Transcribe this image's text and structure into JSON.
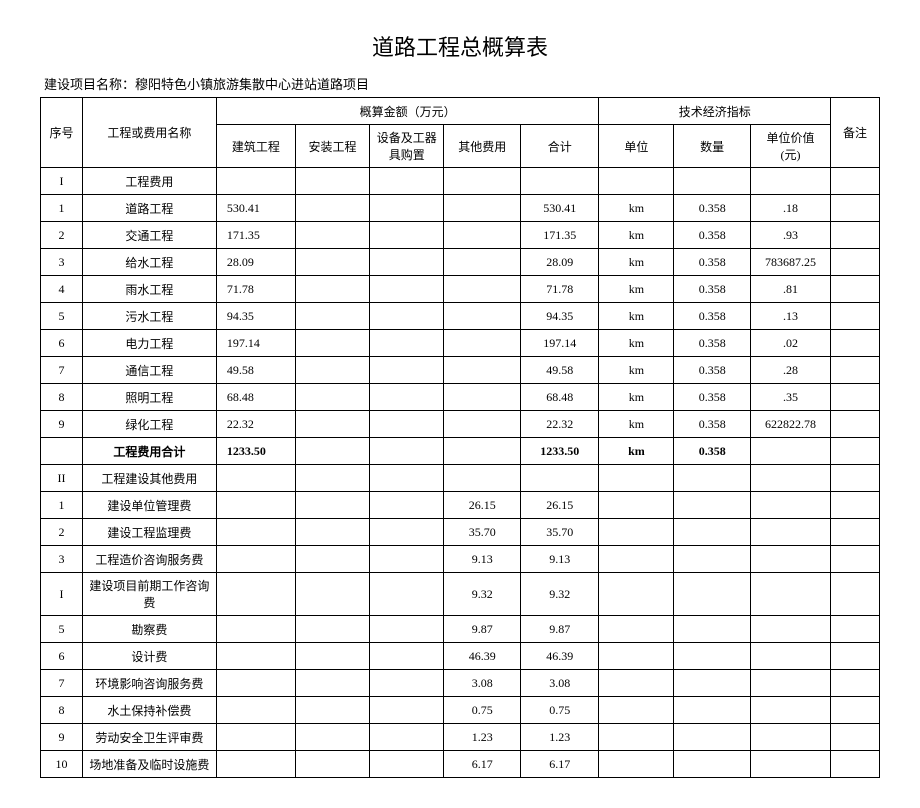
{
  "title": "道路工程总概算表",
  "subtitle": "建设项目名称：穆阳特色小镇旅游集散中心进站道路项目",
  "headers": {
    "seq": "序号",
    "name": "工程或费用名称",
    "budget_group": "概算金额（万元）",
    "tech_group": "技术经济指标",
    "remark": "备注",
    "construction": "建筑工程",
    "install": "安装工程",
    "equipment": "设备及工器具购置",
    "other": "其他费用",
    "total": "合计",
    "unit": "单位",
    "qty": "数量",
    "unit_price": "单位价值(元)"
  },
  "rows": [
    {
      "seq": "I",
      "name": "工程费用",
      "c1": "",
      "c2": "",
      "c3": "",
      "c4": "",
      "c5": "",
      "c6": "",
      "c7": "",
      "c8": "",
      "c9": "",
      "bold": false
    },
    {
      "seq": "1",
      "name": "道路工程",
      "c1": "530.41",
      "c2": "",
      "c3": "",
      "c4": "",
      "c5": "530.41",
      "c6": "km",
      "c7": "0.358",
      "c8": ".18",
      "c9": ""
    },
    {
      "seq": "2",
      "name": "交通工程",
      "c1": "171.35",
      "c2": "",
      "c3": "",
      "c4": "",
      "c5": "171.35",
      "c6": "km",
      "c7": "0.358",
      "c8": ".93",
      "c9": ""
    },
    {
      "seq": "3",
      "name": "给水工程",
      "c1": "28.09",
      "c2": "",
      "c3": "",
      "c4": "",
      "c5": "28.09",
      "c6": "km",
      "c7": "0.358",
      "c8": "783687.25",
      "c9": ""
    },
    {
      "seq": "4",
      "name": "雨水工程",
      "c1": "71.78",
      "c2": "",
      "c3": "",
      "c4": "",
      "c5": "71.78",
      "c6": "km",
      "c7": "0.358",
      "c8": ".81",
      "c9": ""
    },
    {
      "seq": "5",
      "name": "污水工程",
      "c1": "94.35",
      "c2": "",
      "c3": "",
      "c4": "",
      "c5": "94.35",
      "c6": "km",
      "c7": "0.358",
      "c8": ".13",
      "c9": ""
    },
    {
      "seq": "6",
      "name": "电力工程",
      "c1": "197.14",
      "c2": "",
      "c3": "",
      "c4": "",
      "c5": "197.14",
      "c6": "km",
      "c7": "0.358",
      "c8": ".02",
      "c9": ""
    },
    {
      "seq": "7",
      "name": "通信工程",
      "c1": "49.58",
      "c2": "",
      "c3": "",
      "c4": "",
      "c5": "49.58",
      "c6": "km",
      "c7": "0.358",
      "c8": ".28",
      "c9": ""
    },
    {
      "seq": "8",
      "name": "照明工程",
      "c1": "68.48",
      "c2": "",
      "c3": "",
      "c4": "",
      "c5": "68.48",
      "c6": "km",
      "c7": "0.358",
      "c8": ".35",
      "c9": ""
    },
    {
      "seq": "9",
      "name": "绿化工程",
      "c1": "22.32",
      "c2": "",
      "c3": "",
      "c4": "",
      "c5": "22.32",
      "c6": "km",
      "c7": "0.358",
      "c8": "622822.78",
      "c9": ""
    },
    {
      "seq": "",
      "name": "工程费用合计",
      "c1": "1233.50",
      "c2": "",
      "c3": "",
      "c4": "",
      "c5": "1233.50",
      "c6": "km",
      "c7": "0.358",
      "c8": "",
      "c9": "",
      "bold": true
    },
    {
      "seq": "II",
      "name": "工程建设其他费用",
      "c1": "",
      "c2": "",
      "c3": "",
      "c4": "",
      "c5": "",
      "c6": "",
      "c7": "",
      "c8": "",
      "c9": ""
    },
    {
      "seq": "1",
      "name": "建设单位管理费",
      "c1": "",
      "c2": "",
      "c3": "",
      "c4": "26.15",
      "c5": "26.15",
      "c6": "",
      "c7": "",
      "c8": "",
      "c9": ""
    },
    {
      "seq": "2",
      "name": "建设工程监理费",
      "c1": "",
      "c2": "",
      "c3": "",
      "c4": "35.70",
      "c5": "35.70",
      "c6": "",
      "c7": "",
      "c8": "",
      "c9": ""
    },
    {
      "seq": "3",
      "name": "工程造价咨询服务费",
      "c1": "",
      "c2": "",
      "c3": "",
      "c4": "9.13",
      "c5": "9.13",
      "c6": "",
      "c7": "",
      "c8": "",
      "c9": ""
    },
    {
      "seq": "I",
      "name": "建设项目前期工作咨询费",
      "c1": "",
      "c2": "",
      "c3": "",
      "c4": "9.32",
      "c5": "9.32",
      "c6": "",
      "c7": "",
      "c8": "",
      "c9": ""
    },
    {
      "seq": "5",
      "name": "勘察费",
      "c1": "",
      "c2": "",
      "c3": "",
      "c4": "9.87",
      "c5": "9.87",
      "c6": "",
      "c7": "",
      "c8": "",
      "c9": ""
    },
    {
      "seq": "6",
      "name": "设计费",
      "c1": "",
      "c2": "",
      "c3": "",
      "c4": "46.39",
      "c5": "46.39",
      "c6": "",
      "c7": "",
      "c8": "",
      "c9": ""
    },
    {
      "seq": "7",
      "name": "环境影响咨询服务费",
      "c1": "",
      "c2": "",
      "c3": "",
      "c4": "3.08",
      "c5": "3.08",
      "c6": "",
      "c7": "",
      "c8": "",
      "c9": ""
    },
    {
      "seq": "8",
      "name": "水土保持补偿费",
      "c1": "",
      "c2": "",
      "c3": "",
      "c4": "0.75",
      "c5": "0.75",
      "c6": "",
      "c7": "",
      "c8": "",
      "c9": ""
    },
    {
      "seq": "9",
      "name": "劳动安全卫生评审费",
      "c1": "",
      "c2": "",
      "c3": "",
      "c4": "1.23",
      "c5": "1.23",
      "c6": "",
      "c7": "",
      "c8": "",
      "c9": ""
    },
    {
      "seq": "10",
      "name": "场地准备及临时设施费",
      "c1": "",
      "c2": "",
      "c3": "",
      "c4": "6.17",
      "c5": "6.17",
      "c6": "",
      "c7": "",
      "c8": "",
      "c9": ""
    }
  ]
}
